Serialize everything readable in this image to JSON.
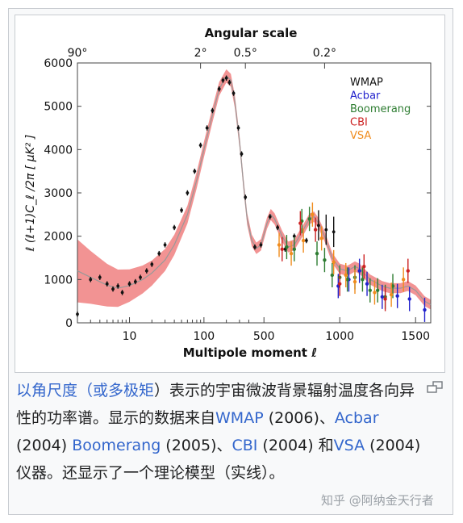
{
  "chart_data": {
    "type": "scatter",
    "title": "Angular scale",
    "xlabel": "Multipole moment ℓ",
    "ylabel": "ℓ (ℓ+1)C_ℓ /2π [ μK² ]",
    "ylim": [
      0,
      6000
    ],
    "y_ticks": [
      0,
      1000,
      2000,
      3000,
      4000,
      5000,
      6000
    ],
    "x_axis_scale": "logarithmic up to 400, linear above",
    "x_ticks": [
      10,
      100,
      500,
      1000,
      1500
    ],
    "top_axis_ticks": [
      "90°",
      "2°",
      "0.5°",
      "0.2°"
    ],
    "legend_position": "top-right",
    "series": [
      {
        "name": "WMAP",
        "color": "#111111",
        "points": [
          [
            2,
            200
          ],
          [
            3,
            1000
          ],
          [
            4,
            1050
          ],
          [
            5,
            900
          ],
          [
            6,
            780
          ],
          [
            7,
            850
          ],
          [
            8,
            700
          ],
          [
            10,
            900
          ],
          [
            12,
            950
          ],
          [
            14,
            1050
          ],
          [
            17,
            1200
          ],
          [
            20,
            1350
          ],
          [
            25,
            1600
          ],
          [
            30,
            1800
          ],
          [
            40,
            2200
          ],
          [
            50,
            2600
          ],
          [
            60,
            3000
          ],
          [
            75,
            3500
          ],
          [
            90,
            4100
          ],
          [
            110,
            4500
          ],
          [
            130,
            4900
          ],
          [
            160,
            5400
          ],
          [
            180,
            5600
          ],
          [
            200,
            5650
          ],
          [
            220,
            5550
          ],
          [
            250,
            5300
          ],
          [
            290,
            4500
          ],
          [
            320,
            3900
          ],
          [
            360,
            2900
          ],
          [
            440,
            1750
          ],
          [
            480,
            1800
          ],
          [
            540,
            2450
          ],
          [
            590,
            2200
          ],
          [
            640,
            1700
          ],
          [
            700,
            2000
          ],
          [
            780,
            1900
          ],
          [
            860,
            2250
          ],
          [
            910,
            2150
          ],
          [
            960,
            2100
          ]
        ]
      },
      {
        "name": "Acbar",
        "color": "#2222cc",
        "points": [
          [
            990,
            850
          ],
          [
            1060,
            1000
          ],
          [
            1130,
            1200
          ],
          [
            1180,
            900
          ],
          [
            1280,
            600
          ],
          [
            1380,
            620
          ],
          [
            1460,
            550
          ],
          [
            1560,
            300
          ]
        ]
      },
      {
        "name": "Boomerang",
        "color": "#2e7d32",
        "points": [
          [
            650,
            1750
          ],
          [
            700,
            1700
          ],
          [
            750,
            2350
          ],
          [
            800,
            2400
          ],
          [
            850,
            1600
          ],
          [
            900,
            1450
          ],
          [
            950,
            1100
          ],
          [
            1000,
            1050
          ],
          [
            1050,
            1000
          ],
          [
            1100,
            1050
          ],
          [
            1150,
            1000
          ],
          [
            1200,
            750
          ],
          [
            1250,
            750
          ],
          [
            1300,
            600
          ],
          [
            1350,
            850
          ]
        ]
      },
      {
        "name": "CBI",
        "color": "#cc2222",
        "points": [
          [
            620,
            1700
          ],
          [
            740,
            2300
          ],
          [
            840,
            2150
          ],
          [
            1000,
            900
          ],
          [
            1160,
            1300
          ],
          [
            1300,
            550
          ],
          [
            1450,
            1200
          ]
        ]
      },
      {
        "name": "VSA",
        "color": "#f08c1e",
        "points": [
          [
            600,
            1800
          ],
          [
            680,
            1600
          ],
          [
            760,
            1900
          ],
          [
            820,
            2500
          ],
          [
            880,
            1950
          ],
          [
            960,
            1400
          ],
          [
            1040,
            1100
          ],
          [
            1100,
            950
          ],
          [
            1230,
            700
          ],
          [
            1340,
            650
          ],
          [
            1420,
            1000
          ]
        ]
      }
    ],
    "model_curve": [
      [
        2,
        1200
      ],
      [
        3,
        1050
      ],
      [
        5,
        870
      ],
      [
        7,
        800
      ],
      [
        10,
        860
      ],
      [
        15,
        1000
      ],
      [
        20,
        1150
      ],
      [
        30,
        1450
      ],
      [
        40,
        1800
      ],
      [
        60,
        2500
      ],
      [
        80,
        3300
      ],
      [
        100,
        4000
      ],
      [
        130,
        4800
      ],
      [
        160,
        5400
      ],
      [
        200,
        5700
      ],
      [
        230,
        5600
      ],
      [
        260,
        5100
      ],
      [
        300,
        4200
      ],
      [
        340,
        3200
      ],
      [
        380,
        2400
      ],
      [
        420,
        1900
      ],
      [
        450,
        1720
      ],
      [
        480,
        1800
      ],
      [
        520,
        2300
      ],
      [
        545,
        2500
      ],
      [
        570,
        2400
      ],
      [
        620,
        2000
      ],
      [
        660,
        1750
      ],
      [
        700,
        1800
      ],
      [
        760,
        2150
      ],
      [
        800,
        2400
      ],
      [
        830,
        2450
      ],
      [
        860,
        2300
      ],
      [
        900,
        2000
      ],
      [
        950,
        1500
      ],
      [
        1000,
        1250
      ],
      [
        1050,
        1200
      ],
      [
        1100,
        1300
      ],
      [
        1130,
        1250
      ],
      [
        1200,
        1000
      ],
      [
        1280,
        850
      ],
      [
        1330,
        800
      ],
      [
        1400,
        800
      ],
      [
        1450,
        850
      ],
      [
        1500,
        750
      ],
      [
        1560,
        500
      ],
      [
        1600,
        420
      ]
    ]
  },
  "caption": {
    "link_1": "以角尺度（或多极矩",
    "text_1": "）表示的宇宙微波背景辐射温度各向异性的功率谱。显示的数据来自",
    "link_wmap": "WMAP",
    "text_2": " (2006)、",
    "link_acbar": "Acbar",
    "text_3": " (2004) ",
    "link_boomerang": "Boomerang",
    "text_4": " (2005)、",
    "link_cbi": "CBI",
    "text_5": " (2004) 和",
    "link_vsa": "VSA",
    "text_6": " (2004) 仪器。还显示了一个理论模型（实线）。"
  },
  "watermark": "知乎 @阿纳金天行者",
  "colors": {
    "band": "#f08080",
    "model_line": "#999999",
    "link": "#3366cc"
  },
  "icons": {
    "magnify": "magnify-icon"
  }
}
